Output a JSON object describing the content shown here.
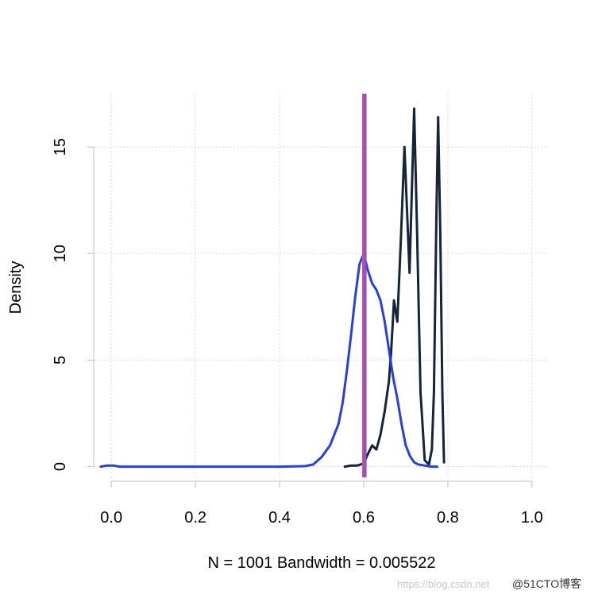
{
  "chart_data": {
    "type": "line",
    "title": "",
    "xlabel": "N = 1001   Bandwidth = 0.005522",
    "ylabel": "Density",
    "xlim": [
      -0.04,
      1.04
    ],
    "ylim": [
      -0.5,
      17.5
    ],
    "grid": true,
    "x_ticks": [
      "0.0",
      "0.2",
      "0.4",
      "0.6",
      "0.8",
      "1.0"
    ],
    "x_tick_values": [
      0.0,
      0.2,
      0.4,
      0.6,
      0.8,
      1.0
    ],
    "y_ticks": [
      "0",
      "5",
      "10",
      "15"
    ],
    "y_tick_values": [
      0,
      5,
      10,
      15
    ],
    "vertical_lines": [
      {
        "x": 0.6,
        "color": "#e0507a"
      },
      {
        "x": 0.603,
        "color": "#8a55cc"
      }
    ],
    "series": [
      {
        "color": "#14253a",
        "points": [
          [
            0.555,
            0.0
          ],
          [
            0.57,
            0.05
          ],
          [
            0.585,
            0.05
          ],
          [
            0.6,
            0.15
          ],
          [
            0.61,
            0.6
          ],
          [
            0.62,
            1.0
          ],
          [
            0.63,
            0.8
          ],
          [
            0.64,
            1.5
          ],
          [
            0.65,
            2.6
          ],
          [
            0.66,
            4.0
          ],
          [
            0.665,
            5.3
          ],
          [
            0.672,
            7.8
          ],
          [
            0.68,
            6.8
          ],
          [
            0.688,
            10.5
          ],
          [
            0.697,
            15.0
          ],
          [
            0.702,
            12.5
          ],
          [
            0.709,
            9.1
          ],
          [
            0.72,
            16.8
          ],
          [
            0.727,
            11.0
          ],
          [
            0.735,
            3.5
          ],
          [
            0.745,
            0.3
          ],
          [
            0.755,
            0.1
          ],
          [
            0.762,
            0.8
          ],
          [
            0.767,
            3.5
          ],
          [
            0.773,
            12.0
          ],
          [
            0.777,
            16.4
          ],
          [
            0.782,
            11.0
          ],
          [
            0.787,
            3.5
          ],
          [
            0.791,
            0.2
          ]
        ]
      },
      {
        "color": "#2a3fd8",
        "points": [
          [
            -0.025,
            0.0
          ],
          [
            -0.01,
            0.05
          ],
          [
            0.005,
            0.05
          ],
          [
            0.02,
            0.0
          ],
          [
            0.05,
            0.0
          ],
          [
            0.2,
            0.0
          ],
          [
            0.4,
            0.0
          ],
          [
            0.46,
            0.02
          ],
          [
            0.48,
            0.1
          ],
          [
            0.5,
            0.45
          ],
          [
            0.52,
            1.0
          ],
          [
            0.54,
            2.0
          ],
          [
            0.55,
            3.0
          ],
          [
            0.56,
            4.5
          ],
          [
            0.57,
            6.2
          ],
          [
            0.58,
            8.0
          ],
          [
            0.59,
            9.5
          ],
          [
            0.6,
            10.0
          ],
          [
            0.61,
            9.2
          ],
          [
            0.62,
            8.6
          ],
          [
            0.63,
            8.3
          ],
          [
            0.64,
            7.8
          ],
          [
            0.65,
            6.8
          ],
          [
            0.66,
            5.5
          ],
          [
            0.67,
            4.2
          ],
          [
            0.68,
            3.2
          ],
          [
            0.69,
            2.0
          ],
          [
            0.7,
            1.0
          ],
          [
            0.71,
            0.5
          ],
          [
            0.72,
            0.2
          ],
          [
            0.73,
            0.1
          ],
          [
            0.745,
            0.05
          ],
          [
            0.76,
            0.0
          ],
          [
            0.775,
            0.0
          ]
        ]
      }
    ]
  },
  "watermark": {
    "url_text": "https://blog.csdn.net",
    "brand_text": "@51CTO博客"
  }
}
